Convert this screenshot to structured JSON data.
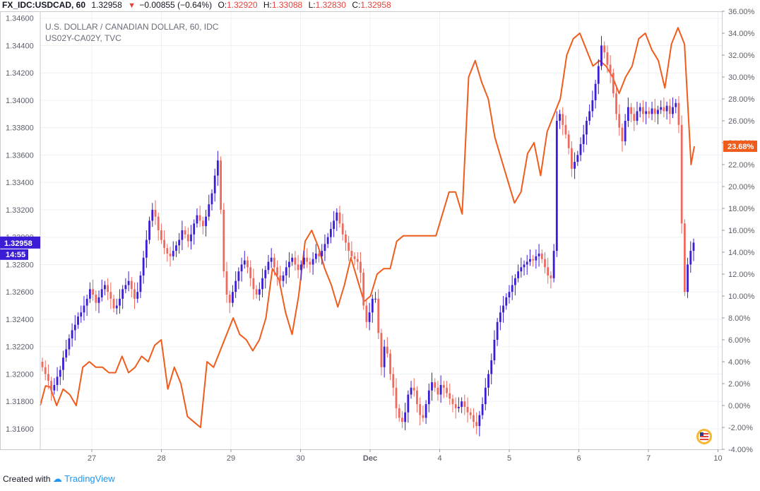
{
  "header": {
    "symbol": "FX_IDC:USDCAD, 60",
    "last": "1.32958",
    "change": "−0.00855 (−0.64%)",
    "o_label": "O:",
    "o": "1.32920",
    "h_label": "H:",
    "h": "1.33088",
    "l_label": "L:",
    "l": "1.32830",
    "c_label": "C:",
    "c": "1.32958",
    "down_color": "#e0443c"
  },
  "legend": {
    "line1": "U.S. DOLLAR / CANADIAN DOLLAR, 60, IDC",
    "line2": "US02Y-CA02Y, TVC"
  },
  "footer": {
    "created": "Created with",
    "brand": "TradingView"
  },
  "chart_data": {
    "type": "line",
    "grid": true,
    "x_tick_labels": [
      "27",
      "28",
      "29",
      "30",
      "Dec",
      "4",
      "5",
      "6",
      "7",
      "10"
    ],
    "left_axis": {
      "ticks": [
        "1.34600",
        "1.34400",
        "1.34200",
        "1.34000",
        "1.33800",
        "1.33600",
        "1.33400",
        "1.33200",
        "1.33000",
        "1.32800",
        "1.32600",
        "1.32400",
        "1.32200",
        "1.32000",
        "1.31800",
        "1.31600"
      ],
      "range": [
        1.3145,
        1.3465
      ],
      "current_label": "1.32958",
      "countdown_label": "14:55"
    },
    "right_axis": {
      "ticks": [
        "36.00%",
        "34.00%",
        "32.00%",
        "30.00%",
        "28.00%",
        "26.00%",
        "24.00%",
        "22.00%",
        "20.00%",
        "18.00%",
        "16.00%",
        "14.00%",
        "12.00%",
        "10.00%",
        "8.00%",
        "6.00%",
        "4.00%",
        "2.00%",
        "0.00%",
        "-2.00%",
        "-4.00%"
      ],
      "range": [
        -4.0,
        36.0
      ],
      "current_label": "23.68%"
    },
    "series": [
      {
        "name": "USDCAD",
        "kind": "candlestick",
        "up_color": "#3b1dd6",
        "down_color": "#ee6a5e",
        "close": [
          1.3205,
          1.32,
          1.3195,
          1.3188,
          1.3192,
          1.3198,
          1.3203,
          1.3212,
          1.3218,
          1.3226,
          1.3232,
          1.3236,
          1.3242,
          1.3245,
          1.325,
          1.3255,
          1.3262,
          1.3258,
          1.3252,
          1.3256,
          1.3262,
          1.3265,
          1.326,
          1.3255,
          1.3248,
          1.325,
          1.3255,
          1.3262,
          1.3265,
          1.3268,
          1.3262,
          1.3255,
          1.326,
          1.3272,
          1.3285,
          1.3298,
          1.3312,
          1.332,
          1.3315,
          1.3305,
          1.3298,
          1.3292,
          1.3288,
          1.3286,
          1.329,
          1.3294,
          1.3298,
          1.3305,
          1.3302,
          1.3297,
          1.3302,
          1.331,
          1.3316,
          1.3312,
          1.3308,
          1.3315,
          1.3324,
          1.3332,
          1.3345,
          1.3356,
          1.332,
          1.3275,
          1.3258,
          1.3252,
          1.326,
          1.3268,
          1.3275,
          1.328,
          1.3283,
          1.3278,
          1.327,
          1.3262,
          1.3258,
          1.3262,
          1.327,
          1.3276,
          1.3282,
          1.3285,
          1.3278,
          1.3272,
          1.3268,
          1.3272,
          1.3278,
          1.3282,
          1.3285,
          1.328,
          1.3276,
          1.328,
          1.3285,
          1.3282,
          1.328,
          1.3284,
          1.3288,
          1.3286,
          1.329,
          1.3295,
          1.33,
          1.3306,
          1.3312,
          1.3318,
          1.331,
          1.3302,
          1.3296,
          1.329,
          1.3286,
          1.3284,
          1.3282,
          1.3274,
          1.325,
          1.3238,
          1.3245,
          1.3255,
          1.3255,
          1.323,
          1.3205,
          1.322,
          1.3215,
          1.32,
          1.319,
          1.3175,
          1.3168,
          1.3165,
          1.3172,
          1.3185,
          1.319,
          1.3188,
          1.3178,
          1.317,
          1.3168,
          1.3178,
          1.3188,
          1.3194,
          1.319,
          1.3185,
          1.3192,
          1.319,
          1.3186,
          1.3182,
          1.3178,
          1.3175,
          1.3176,
          1.318,
          1.3176,
          1.3172,
          1.317,
          1.3165,
          1.3162,
          1.317,
          1.3178,
          1.319,
          1.32,
          1.321,
          1.3225,
          1.3238,
          1.3245,
          1.325,
          1.3256,
          1.326,
          1.3265,
          1.327,
          1.3275,
          1.3278,
          1.328,
          1.3282,
          1.3284,
          1.3283,
          1.3286,
          1.3288,
          1.3284,
          1.3278,
          1.3272,
          1.327,
          1.329,
          1.3385,
          1.339,
          1.3382,
          1.3375,
          1.3365,
          1.335,
          1.3355,
          1.336,
          1.3368,
          1.3375,
          1.3385,
          1.3392,
          1.34,
          1.3412,
          1.3425,
          1.344,
          1.3435,
          1.3426,
          1.342,
          1.3405,
          1.339,
          1.338,
          1.337,
          1.3385,
          1.3395,
          1.339,
          1.3385,
          1.3392,
          1.3395,
          1.339,
          1.3392,
          1.339,
          1.3394,
          1.339,
          1.3393,
          1.3395,
          1.3392,
          1.3396,
          1.339,
          1.3395,
          1.3398,
          1.3382,
          1.331,
          1.326,
          1.328,
          1.329,
          1.3296
        ]
      },
      {
        "name": "US02Y-CA02Y",
        "kind": "line",
        "color": "#f05c1c",
        "x_pct": [
          0,
          0.8,
          1.5,
          2.5,
          3.5,
          4.5,
          5.5,
          6.5,
          7.5,
          8.5,
          9.5,
          10.5,
          11.5,
          12.5,
          13.5,
          14.5,
          15.5,
          16.5,
          17.5,
          18.5,
          19.5,
          20.5,
          21.5,
          22.5,
          23.5,
          24.5,
          25.5,
          26.5,
          27.5,
          28.5,
          29.5,
          30.5,
          31.5,
          32.5,
          33.5,
          34.5,
          35.5,
          36.5,
          37.5,
          38.5,
          39.5,
          40.5,
          41.5,
          42.5,
          43.5,
          44.5,
          45.5,
          46.5,
          47.5,
          48.5,
          49.5,
          50.5,
          51.5,
          52.5,
          53.5,
          54.5,
          55.5,
          56.5,
          57.5,
          58.5,
          59.5,
          60.5,
          61.5,
          62.5,
          63.5,
          64.5,
          65.5,
          66.5,
          67.5,
          68.5,
          69.5,
          70.5,
          71.5,
          72.5,
          73.5,
          74.5,
          75.5,
          76.5,
          77.5,
          78.5,
          79.5,
          80.5,
          81.5,
          82.5,
          83.5,
          84.5,
          85.5,
          86.5,
          87.5,
          88.5,
          89.5,
          90.5,
          91.5,
          92.5,
          93.5,
          94.5,
          95.5,
          96.5,
          97.5,
          98.5,
          99.5,
          100
        ],
        "y": [
          0,
          1.8,
          1.7,
          0,
          1.5,
          1.0,
          0,
          3.5,
          4.0,
          3.5,
          3.5,
          3.0,
          3.0,
          4.5,
          3.0,
          3.5,
          4.5,
          4.0,
          5.5,
          6.0,
          1.5,
          3.5,
          2.0,
          -1.0,
          -1.5,
          -2.0,
          4.0,
          3.5,
          5.0,
          6.5,
          8.0,
          6.5,
          6.0,
          5.0,
          6.0,
          8.0,
          12.5,
          11.5,
          8.5,
          6.5,
          10.0,
          15.0,
          16.0,
          14.5,
          12.5,
          11.0,
          9.0,
          11.0,
          13.5,
          11.5,
          9.5,
          10.0,
          12.0,
          12.5,
          12.5,
          15.0,
          15.5,
          15.5,
          15.5,
          15.5,
          15.5,
          15.5,
          17.5,
          19.5,
          19.5,
          17.5,
          30.0,
          31.5,
          29.5,
          28.0,
          24.5,
          22.5,
          20.5,
          18.5,
          19.5,
          23.0,
          24.0,
          21.0,
          25.0,
          26.5,
          28.0,
          32.0,
          33.5,
          34.0,
          32.5,
          31.0,
          31.5,
          31.0,
          30.0,
          28.5,
          30.0,
          31.0,
          33.5,
          34.0,
          32.5,
          31.5,
          29.0,
          33.0,
          34.5,
          33.0,
          22.0,
          23.68
        ]
      }
    ]
  }
}
